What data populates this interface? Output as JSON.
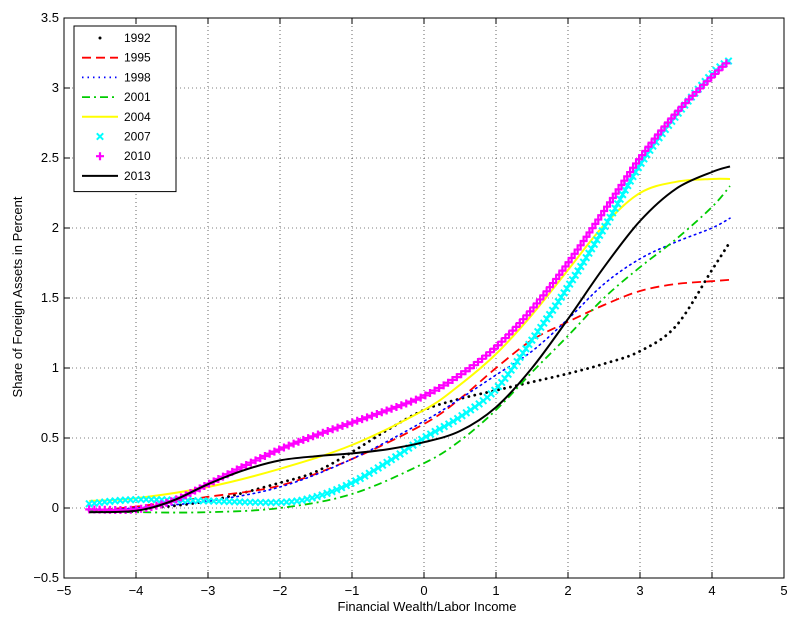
{
  "chart_data": {
    "type": "line",
    "xlabel": "Financial Wealth/Labor Income",
    "ylabel": "Share of Foreign Assets in Percent",
    "xlim": [
      -5,
      5
    ],
    "ylim": [
      -0.5,
      3.5
    ],
    "xticks": [
      -5,
      -4,
      -3,
      -2,
      -1,
      0,
      1,
      2,
      3,
      4,
      5
    ],
    "yticks": [
      -0.5,
      0,
      0.5,
      1,
      1.5,
      2,
      2.5,
      3,
      3.5
    ],
    "xtick_labels": [
      "−5",
      "−4",
      "−3",
      "−2",
      "−1",
      "0",
      "1",
      "2",
      "3",
      "4",
      "5"
    ],
    "ytick_labels": [
      "−0.5",
      "0",
      "0.5",
      "1",
      "1.5",
      "2",
      "2.5",
      "3",
      "3.5"
    ],
    "grid": true,
    "legend_position": "top-left",
    "series": [
      {
        "name": "1992",
        "color": "#000000",
        "style": "dotted",
        "x": [
          -4.65,
          -4,
          -3,
          -2,
          -1.5,
          -1,
          -0.5,
          0,
          0.5,
          1,
          1.5,
          2,
          2.5,
          3,
          3.5,
          4,
          4.25
        ],
        "y": [
          -0.02,
          -0.01,
          0.05,
          0.18,
          0.26,
          0.4,
          0.56,
          0.7,
          0.78,
          0.84,
          0.9,
          0.96,
          1.03,
          1.12,
          1.3,
          1.7,
          1.9
        ]
      },
      {
        "name": "1995",
        "color": "#ff0000",
        "style": "dashed",
        "x": [
          -4.65,
          -4,
          -3,
          -2,
          -1,
          0,
          0.5,
          1,
          1.5,
          2,
          2.5,
          3,
          3.5,
          4,
          4.25
        ],
        "y": [
          -0.02,
          0.01,
          0.08,
          0.16,
          0.35,
          0.6,
          0.78,
          1.0,
          1.2,
          1.33,
          1.45,
          1.55,
          1.6,
          1.62,
          1.63
        ]
      },
      {
        "name": "1998",
        "color": "#0000ff",
        "style": "dotted",
        "x": [
          -4.65,
          -4,
          -3,
          -2,
          -1,
          0,
          0.5,
          1,
          1.5,
          2,
          2.5,
          3,
          3.5,
          4,
          4.25
        ],
        "y": [
          -0.02,
          0.0,
          0.05,
          0.15,
          0.35,
          0.62,
          0.78,
          0.95,
          1.12,
          1.35,
          1.6,
          1.78,
          1.9,
          2.0,
          2.07
        ]
      },
      {
        "name": "2001",
        "color": "#00cc00",
        "style": "dashdot",
        "x": [
          -4.65,
          -4,
          -3,
          -2,
          -1,
          0,
          0.5,
          1,
          1.5,
          2,
          2.5,
          3,
          3.5,
          4,
          4.25
        ],
        "y": [
          -0.02,
          -0.03,
          -0.03,
          0.0,
          0.1,
          0.32,
          0.48,
          0.7,
          0.97,
          1.23,
          1.5,
          1.72,
          1.92,
          2.15,
          2.3
        ]
      },
      {
        "name": "2004",
        "color": "#ffff00",
        "style": "solid",
        "x": [
          -4.65,
          -4,
          -3,
          -2,
          -1,
          0,
          0.5,
          1,
          1.5,
          2,
          2.5,
          3,
          3.5,
          4,
          4.25
        ],
        "y": [
          0.05,
          0.07,
          0.15,
          0.28,
          0.45,
          0.7,
          0.88,
          1.1,
          1.38,
          1.7,
          2.02,
          2.25,
          2.33,
          2.35,
          2.35
        ]
      },
      {
        "name": "2007",
        "color": "#00ffff",
        "style": "x",
        "x": [
          -4.65,
          -4,
          -3,
          -2,
          -1.5,
          -1,
          -0.5,
          0,
          0.5,
          1,
          1.5,
          2,
          2.5,
          3,
          3.5,
          4,
          4.25
        ],
        "y": [
          0.03,
          0.06,
          0.05,
          0.04,
          0.08,
          0.18,
          0.33,
          0.5,
          0.65,
          0.85,
          1.2,
          1.58,
          2.0,
          2.45,
          2.8,
          3.1,
          3.2
        ]
      },
      {
        "name": "2010",
        "color": "#ff00ff",
        "style": "plus",
        "x": [
          -4.65,
          -4,
          -3.5,
          -3,
          -2.5,
          -2,
          -1.5,
          -1,
          -0.5,
          0,
          0.5,
          1,
          1.5,
          2,
          2.5,
          3,
          3.5,
          4,
          4.25
        ],
        "y": [
          -0.01,
          -0.01,
          0.05,
          0.17,
          0.3,
          0.42,
          0.52,
          0.61,
          0.7,
          0.8,
          0.95,
          1.15,
          1.42,
          1.75,
          2.12,
          2.5,
          2.82,
          3.08,
          3.2
        ]
      },
      {
        "name": "2013",
        "color": "#000000",
        "style": "solid",
        "x": [
          -4.65,
          -4,
          -3.5,
          -3,
          -2.5,
          -2,
          -1.5,
          -1,
          -0.5,
          0,
          0.5,
          1,
          1.5,
          2,
          2.5,
          3,
          3.5,
          4,
          4.25
        ],
        "y": [
          -0.03,
          -0.02,
          0.05,
          0.17,
          0.27,
          0.34,
          0.37,
          0.39,
          0.42,
          0.47,
          0.55,
          0.72,
          1.0,
          1.35,
          1.72,
          2.05,
          2.28,
          2.4,
          2.44
        ]
      }
    ]
  }
}
